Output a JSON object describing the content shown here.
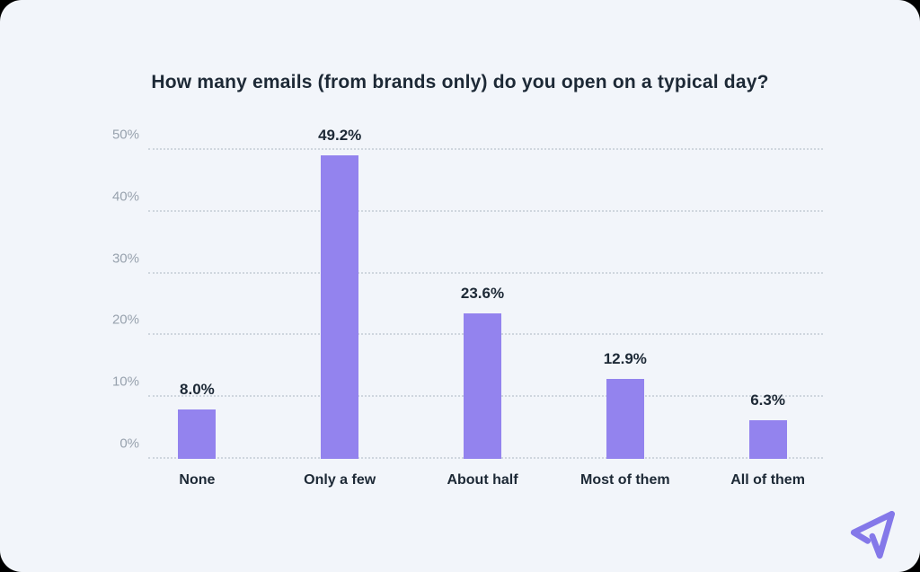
{
  "card": {
    "background_color": "#f2f5fa",
    "accent_color": "#9383ee",
    "text_dark_color": "#1d2936",
    "tick_gray_color": "#98a2ae"
  },
  "chart_data": {
    "type": "bar",
    "title": "How many emails (from brands only) do you open on a typical day?",
    "categories": [
      "None",
      "Only a few",
      "About half",
      "Most of them",
      "All of them"
    ],
    "values": [
      8.0,
      49.2,
      23.6,
      12.9,
      6.3
    ],
    "value_labels": [
      "8.0%",
      "49.2%",
      "23.6%",
      "12.9%",
      "6.3%"
    ],
    "xlabel": "",
    "ylabel": "",
    "ylim": [
      0,
      50
    ],
    "yticks": [
      0,
      10,
      20,
      30,
      40,
      50
    ],
    "ytick_labels": [
      "0%",
      "10%",
      "20%",
      "30%",
      "40%",
      "50%"
    ],
    "grid": "horizontal-dotted",
    "legend": "none",
    "bar_color": "#9383ee"
  },
  "branding": {
    "logo_icon": "paper-plane-icon",
    "logo_color": "#8478e9"
  }
}
